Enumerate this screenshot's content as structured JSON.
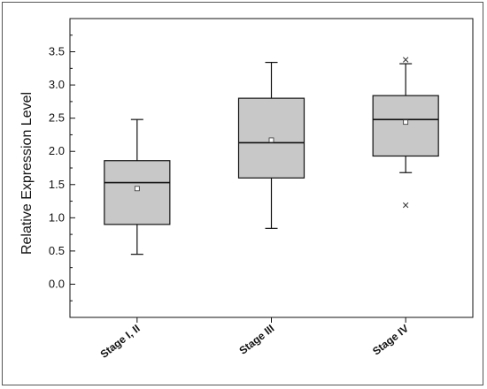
{
  "chart_data": {
    "type": "box",
    "title": "",
    "xlabel": "",
    "ylabel": "Relative Expression Level",
    "ylim": [
      -0.5,
      4.0
    ],
    "yticks": [
      0.0,
      0.5,
      1.0,
      1.5,
      2.0,
      2.5,
      3.0,
      3.5
    ],
    "ytick_labels": [
      "0.0",
      "0.5",
      "1.0",
      "1.5",
      "2.0",
      "2.5",
      "3.0",
      "3.5"
    ],
    "grid": false,
    "categories": [
      "Stage I, II",
      "Stage III",
      "Stage IV"
    ],
    "boxes": [
      {
        "whisker_low": 0.45,
        "q1": 0.9,
        "median": 1.53,
        "q3": 1.86,
        "whisker_high": 2.48,
        "mean": 1.44,
        "outliers": []
      },
      {
        "whisker_low": 0.84,
        "q1": 1.6,
        "median": 2.13,
        "q3": 2.8,
        "whisker_high": 3.34,
        "mean": 2.17,
        "outliers": []
      },
      {
        "whisker_low": 1.68,
        "q1": 1.93,
        "median": 2.48,
        "q3": 2.84,
        "whisker_high": 3.32,
        "mean": 2.44,
        "outliers": [
          1.19,
          3.38
        ]
      }
    ],
    "box_fill": "#c8c8c8",
    "line_color": "#111111"
  }
}
